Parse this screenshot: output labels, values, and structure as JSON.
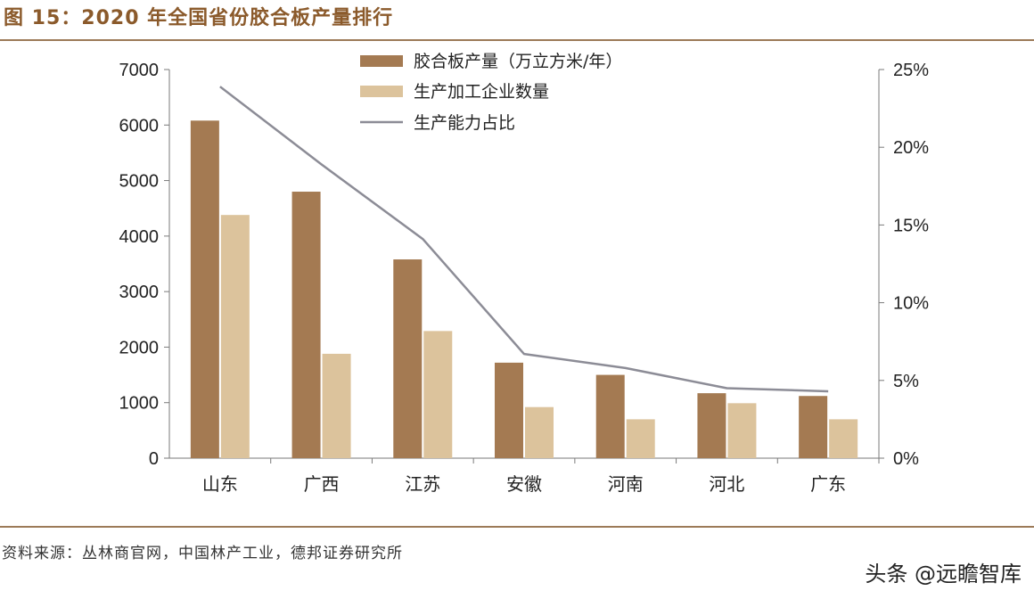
{
  "title": "图 15：2020 年全国省份胶合板产量排行",
  "source": "资料来源：丛林商官网，中国林产工业，德邦证券研究所",
  "watermark": "头条 @远瞻智库",
  "colors": {
    "production": "#a47a52",
    "enterprises": "#dcc39c",
    "share_line": "#8c8c96",
    "title": "#8b5a2b"
  },
  "chart_data": {
    "type": "bar",
    "categories": [
      "山东",
      "广西",
      "江苏",
      "安徽",
      "河南",
      "河北",
      "广东"
    ],
    "series": [
      {
        "name": "胶合板产量（万立方米/年）",
        "type": "bar",
        "axis": "left",
        "values": [
          6080,
          4800,
          3580,
          1720,
          1500,
          1170,
          1120
        ]
      },
      {
        "name": "生产加工企业数量",
        "type": "bar",
        "axis": "left",
        "values": [
          4380,
          1880,
          2290,
          920,
          700,
          990,
          700
        ]
      },
      {
        "name": "生产能力占比",
        "type": "line",
        "axis": "right",
        "values": [
          0.239,
          0.189,
          0.141,
          0.067,
          0.058,
          0.045,
          0.043
        ]
      }
    ],
    "ylim_left": [
      0,
      7000
    ],
    "yticks_left": [
      "0",
      "1000",
      "2000",
      "3000",
      "4000",
      "5000",
      "6000",
      "7000"
    ],
    "ylim_right": [
      0,
      0.25
    ],
    "yticks_right": [
      "0%",
      "5%",
      "10%",
      "15%",
      "20%",
      "25%"
    ],
    "legend_position": "top-center",
    "grid": false
  }
}
